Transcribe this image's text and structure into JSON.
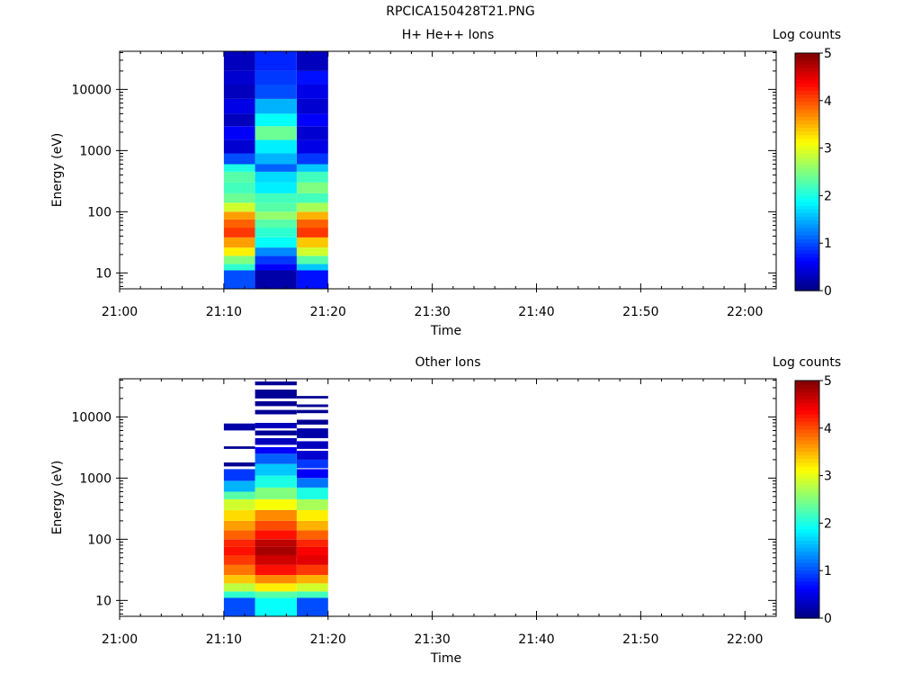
{
  "page_title": "RPCICA150428T21.PNG",
  "chart_data": [
    {
      "type": "heatmap",
      "title": "H+ He++ Ions",
      "xlabel": "Time",
      "ylabel": "Energy (eV)",
      "x_ticks": [
        "21:00",
        "21:10",
        "21:20",
        "21:30",
        "21:40",
        "21:50",
        "22:00"
      ],
      "x_range": [
        "21:00",
        "22:03"
      ],
      "y_scale": "log",
      "y_ticks": [
        "10",
        "100",
        "1000",
        "10000"
      ],
      "y_range": [
        5.5,
        42000
      ],
      "colorbar": {
        "label": "Log counts",
        "ticks": [
          "0",
          "1",
          "2",
          "3",
          "4",
          "5"
        ],
        "range": [
          0,
          5
        ]
      },
      "columns": [
        {
          "t_start": "21:10",
          "t_end": "21:13",
          "bins": [
            {
              "e_lo": 5.5,
              "e_hi": 11,
              "v": 1.0
            },
            {
              "e_lo": 11,
              "e_hi": 14,
              "v": 2.1
            },
            {
              "e_lo": 14,
              "e_hi": 19,
              "v": 2.5
            },
            {
              "e_lo": 19,
              "e_hi": 26,
              "v": 3.2
            },
            {
              "e_lo": 26,
              "e_hi": 38,
              "v": 3.6
            },
            {
              "e_lo": 38,
              "e_hi": 55,
              "v": 4.1
            },
            {
              "e_lo": 55,
              "e_hi": 75,
              "v": 3.9
            },
            {
              "e_lo": 75,
              "e_hi": 100,
              "v": 3.6
            },
            {
              "e_lo": 100,
              "e_hi": 140,
              "v": 2.9
            },
            {
              "e_lo": 140,
              "e_hi": 200,
              "v": 2.4
            },
            {
              "e_lo": 200,
              "e_hi": 300,
              "v": 2.2
            },
            {
              "e_lo": 300,
              "e_hi": 450,
              "v": 2.3
            },
            {
              "e_lo": 450,
              "e_hi": 600,
              "v": 2.0
            },
            {
              "e_lo": 600,
              "e_hi": 900,
              "v": 1.0
            },
            {
              "e_lo": 900,
              "e_hi": 1500,
              "v": 0.4
            },
            {
              "e_lo": 1500,
              "e_hi": 2500,
              "v": 0.6
            },
            {
              "e_lo": 2500,
              "e_hi": 4000,
              "v": 0.3
            },
            {
              "e_lo": 4000,
              "e_hi": 7000,
              "v": 0.5
            },
            {
              "e_lo": 7000,
              "e_hi": 12000,
              "v": 0.3
            },
            {
              "e_lo": 12000,
              "e_hi": 20000,
              "v": 0.4
            },
            {
              "e_lo": 20000,
              "e_hi": 42000,
              "v": 0.3
            }
          ]
        },
        {
          "t_start": "21:13",
          "t_end": "21:17",
          "bins": [
            {
              "e_lo": 5.5,
              "e_hi": 11,
              "v": 0.2
            },
            {
              "e_lo": 11,
              "e_hi": 14,
              "v": 0.6
            },
            {
              "e_lo": 14,
              "e_hi": 19,
              "v": 0.9
            },
            {
              "e_lo": 19,
              "e_hi": 26,
              "v": 1.3
            },
            {
              "e_lo": 26,
              "e_hi": 38,
              "v": 1.9
            },
            {
              "e_lo": 38,
              "e_hi": 55,
              "v": 2.1
            },
            {
              "e_lo": 55,
              "e_hi": 75,
              "v": 2.3
            },
            {
              "e_lo": 75,
              "e_hi": 100,
              "v": 2.6
            },
            {
              "e_lo": 100,
              "e_hi": 140,
              "v": 2.3
            },
            {
              "e_lo": 140,
              "e_hi": 200,
              "v": 2.2
            },
            {
              "e_lo": 200,
              "e_hi": 300,
              "v": 1.8
            },
            {
              "e_lo": 300,
              "e_hi": 450,
              "v": 1.7
            },
            {
              "e_lo": 450,
              "e_hi": 600,
              "v": 1.1
            },
            {
              "e_lo": 600,
              "e_hi": 900,
              "v": 1.5
            },
            {
              "e_lo": 900,
              "e_hi": 1500,
              "v": 1.8
            },
            {
              "e_lo": 1500,
              "e_hi": 2500,
              "v": 2.4
            },
            {
              "e_lo": 2500,
              "e_hi": 4000,
              "v": 1.9
            },
            {
              "e_lo": 4000,
              "e_hi": 7000,
              "v": 1.5
            },
            {
              "e_lo": 7000,
              "e_hi": 12000,
              "v": 1.0
            },
            {
              "e_lo": 12000,
              "e_hi": 20000,
              "v": 0.9
            },
            {
              "e_lo": 20000,
              "e_hi": 42000,
              "v": 0.8
            }
          ]
        },
        {
          "t_start": "21:17",
          "t_end": "21:20",
          "bins": [
            {
              "e_lo": 5.5,
              "e_hi": 11,
              "v": 0.7
            },
            {
              "e_lo": 11,
              "e_hi": 14,
              "v": 1.6
            },
            {
              "e_lo": 14,
              "e_hi": 19,
              "v": 2.3
            },
            {
              "e_lo": 19,
              "e_hi": 26,
              "v": 2.9
            },
            {
              "e_lo": 26,
              "e_hi": 38,
              "v": 3.4
            },
            {
              "e_lo": 38,
              "e_hi": 55,
              "v": 4.1
            },
            {
              "e_lo": 55,
              "e_hi": 75,
              "v": 3.9
            },
            {
              "e_lo": 75,
              "e_hi": 100,
              "v": 3.5
            },
            {
              "e_lo": 100,
              "e_hi": 140,
              "v": 2.7
            },
            {
              "e_lo": 140,
              "e_hi": 200,
              "v": 2.2
            },
            {
              "e_lo": 200,
              "e_hi": 300,
              "v": 2.5
            },
            {
              "e_lo": 300,
              "e_hi": 450,
              "v": 2.2
            },
            {
              "e_lo": 450,
              "e_hi": 600,
              "v": 1.6
            },
            {
              "e_lo": 600,
              "e_hi": 900,
              "v": 0.9
            },
            {
              "e_lo": 900,
              "e_hi": 1500,
              "v": 0.5
            },
            {
              "e_lo": 1500,
              "e_hi": 2500,
              "v": 0.4
            },
            {
              "e_lo": 2500,
              "e_hi": 4000,
              "v": 0.6
            },
            {
              "e_lo": 4000,
              "e_hi": 7000,
              "v": 0.4
            },
            {
              "e_lo": 7000,
              "e_hi": 12000,
              "v": 0.5
            },
            {
              "e_lo": 12000,
              "e_hi": 20000,
              "v": 0.7
            },
            {
              "e_lo": 20000,
              "e_hi": 42000,
              "v": 0.3
            }
          ]
        }
      ]
    },
    {
      "type": "heatmap",
      "title": "Other Ions",
      "xlabel": "Time",
      "ylabel": "Energy (eV)",
      "x_ticks": [
        "21:00",
        "21:10",
        "21:20",
        "21:30",
        "21:40",
        "21:50",
        "22:00"
      ],
      "x_range": [
        "21:00",
        "22:03"
      ],
      "y_scale": "log",
      "y_ticks": [
        "10",
        "100",
        "1000",
        "10000"
      ],
      "y_range": [
        5.5,
        42000
      ],
      "colorbar": {
        "label": "Log counts",
        "ticks": [
          "0",
          "1",
          "2",
          "3",
          "4",
          "5"
        ],
        "range": [
          0,
          5
        ]
      },
      "columns": [
        {
          "t_start": "21:10",
          "t_end": "21:13",
          "bins": [
            {
              "e_lo": 5.5,
              "e_hi": 11,
              "v": 1.0
            },
            {
              "e_lo": 11,
              "e_hi": 14,
              "v": 2.1
            },
            {
              "e_lo": 14,
              "e_hi": 19,
              "v": 2.8
            },
            {
              "e_lo": 19,
              "e_hi": 26,
              "v": 3.4
            },
            {
              "e_lo": 26,
              "e_hi": 38,
              "v": 3.8
            },
            {
              "e_lo": 38,
              "e_hi": 55,
              "v": 4.1
            },
            {
              "e_lo": 55,
              "e_hi": 75,
              "v": 4.3
            },
            {
              "e_lo": 75,
              "e_hi": 100,
              "v": 4.2
            },
            {
              "e_lo": 100,
              "e_hi": 140,
              "v": 3.9
            },
            {
              "e_lo": 140,
              "e_hi": 200,
              "v": 3.6
            },
            {
              "e_lo": 200,
              "e_hi": 300,
              "v": 3.3
            },
            {
              "e_lo": 300,
              "e_hi": 450,
              "v": 2.9
            },
            {
              "e_lo": 450,
              "e_hi": 600,
              "v": 2.3
            },
            {
              "e_lo": 600,
              "e_hi": 900,
              "v": 1.5
            },
            {
              "e_lo": 900,
              "e_hi": 1400,
              "v": 0.9
            },
            {
              "e_lo": 1550,
              "e_hi": 1800,
              "v": 0.1
            },
            {
              "e_lo": 3000,
              "e_hi": 3300,
              "v": 0.1
            },
            {
              "e_lo": 6000,
              "e_hi": 7800,
              "v": 0.2
            }
          ]
        },
        {
          "t_start": "21:13",
          "t_end": "21:17",
          "bins": [
            {
              "e_lo": 5.5,
              "e_hi": 11,
              "v": 1.9
            },
            {
              "e_lo": 11,
              "e_hi": 14,
              "v": 2.3
            },
            {
              "e_lo": 14,
              "e_hi": 19,
              "v": 3.2
            },
            {
              "e_lo": 19,
              "e_hi": 26,
              "v": 3.7
            },
            {
              "e_lo": 26,
              "e_hi": 38,
              "v": 4.3
            },
            {
              "e_lo": 38,
              "e_hi": 55,
              "v": 4.6
            },
            {
              "e_lo": 55,
              "e_hi": 75,
              "v": 4.8
            },
            {
              "e_lo": 75,
              "e_hi": 100,
              "v": 4.7
            },
            {
              "e_lo": 100,
              "e_hi": 140,
              "v": 4.3
            },
            {
              "e_lo": 140,
              "e_hi": 200,
              "v": 4.0
            },
            {
              "e_lo": 200,
              "e_hi": 300,
              "v": 3.7
            },
            {
              "e_lo": 300,
              "e_hi": 450,
              "v": 3.1
            },
            {
              "e_lo": 450,
              "e_hi": 700,
              "v": 2.5
            },
            {
              "e_lo": 700,
              "e_hi": 1100,
              "v": 2.0
            },
            {
              "e_lo": 1100,
              "e_hi": 1700,
              "v": 1.6
            },
            {
              "e_lo": 1700,
              "e_hi": 2500,
              "v": 1.1
            },
            {
              "e_lo": 2500,
              "e_hi": 3200,
              "v": 0.6
            },
            {
              "e_lo": 3500,
              "e_hi": 4500,
              "v": 0.3
            },
            {
              "e_lo": 5000,
              "e_hi": 6000,
              "v": 0.1
            },
            {
              "e_lo": 6500,
              "e_hi": 8000,
              "v": 0.3
            },
            {
              "e_lo": 11000,
              "e_hi": 13000,
              "v": 0.1
            },
            {
              "e_lo": 15000,
              "e_hi": 18000,
              "v": 0.1
            },
            {
              "e_lo": 20000,
              "e_hi": 28000,
              "v": 0.1
            },
            {
              "e_lo": 33000,
              "e_hi": 38000,
              "v": 0.1
            }
          ]
        },
        {
          "t_start": "21:17",
          "t_end": "21:20",
          "bins": [
            {
              "e_lo": 5.5,
              "e_hi": 11,
              "v": 1.0
            },
            {
              "e_lo": 11,
              "e_hi": 14,
              "v": 2.2
            },
            {
              "e_lo": 14,
              "e_hi": 19,
              "v": 2.9
            },
            {
              "e_lo": 19,
              "e_hi": 26,
              "v": 3.5
            },
            {
              "e_lo": 26,
              "e_hi": 38,
              "v": 4.1
            },
            {
              "e_lo": 38,
              "e_hi": 55,
              "v": 4.5
            },
            {
              "e_lo": 55,
              "e_hi": 75,
              "v": 4.4
            },
            {
              "e_lo": 75,
              "e_hi": 100,
              "v": 4.2
            },
            {
              "e_lo": 100,
              "e_hi": 140,
              "v": 3.9
            },
            {
              "e_lo": 140,
              "e_hi": 200,
              "v": 3.5
            },
            {
              "e_lo": 200,
              "e_hi": 300,
              "v": 3.2
            },
            {
              "e_lo": 300,
              "e_hi": 450,
              "v": 2.7
            },
            {
              "e_lo": 450,
              "e_hi": 700,
              "v": 2.0
            },
            {
              "e_lo": 700,
              "e_hi": 1000,
              "v": 1.2
            },
            {
              "e_lo": 1000,
              "e_hi": 1400,
              "v": 0.6
            },
            {
              "e_lo": 1450,
              "e_hi": 2000,
              "v": 0.9
            },
            {
              "e_lo": 2000,
              "e_hi": 2800,
              "v": 0.4
            },
            {
              "e_lo": 3000,
              "e_hi": 4000,
              "v": 0.3
            },
            {
              "e_lo": 4500,
              "e_hi": 6500,
              "v": 0.2
            },
            {
              "e_lo": 7500,
              "e_hi": 9000,
              "v": 0.1
            },
            {
              "e_lo": 11500,
              "e_hi": 13000,
              "v": 0.1
            },
            {
              "e_lo": 14500,
              "e_hi": 16000,
              "v": 0.1
            },
            {
              "e_lo": 20000,
              "e_hi": 22000,
              "v": 0.1
            }
          ]
        }
      ]
    }
  ]
}
